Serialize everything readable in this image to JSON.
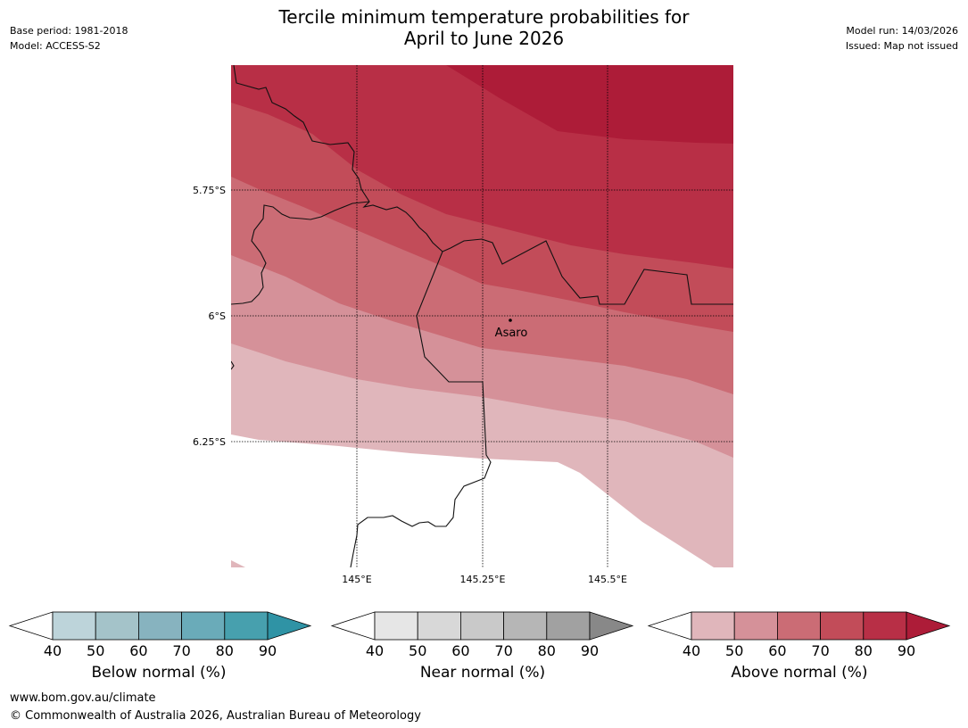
{
  "title_line1": "Tercile minimum temperature probabilities for",
  "title_line2": "April to June 2026",
  "base_period": "Base period: 1981-2018",
  "model": "Model: ACCESS-S2",
  "model_run": "Model run: 14/03/2026",
  "issued": "Issued: Map not issued",
  "map": {
    "lat_labels": [
      "5.75°S",
      "6°S",
      "6.25°S"
    ],
    "lon_labels": [
      "145°E",
      "145.25°E",
      "145.5°E"
    ],
    "place": "Asaro"
  },
  "colorbars": [
    {
      "label": "Below normal (%)",
      "ticks": [
        "40",
        "50",
        "60",
        "70",
        "80",
        "90"
      ],
      "colors": [
        "#bdd4da",
        "#a4c3c9",
        "#87b3bf",
        "#6aabb9",
        "#47a0ae",
        "#2f93a5"
      ]
    },
    {
      "label": "Near normal (%)",
      "ticks": [
        "40",
        "50",
        "60",
        "70",
        "80",
        "90"
      ],
      "colors": [
        "#e6e6e6",
        "#d8d8d8",
        "#c9c9c9",
        "#b6b6b6",
        "#a1a1a1",
        "#888888"
      ]
    },
    {
      "label": "Above normal (%)",
      "ticks": [
        "40",
        "50",
        "60",
        "70",
        "80",
        "90"
      ],
      "colors": [
        "#e0b6bb",
        "#d59199",
        "#cb6c75",
        "#c24c59",
        "#b82f46",
        "#ad1c38"
      ]
    }
  ],
  "footer_url": "www.bom.gov.au/climate",
  "footer_copyright": "© Commonwealth of Australia 2026, Australian Bureau of Meteorology"
}
